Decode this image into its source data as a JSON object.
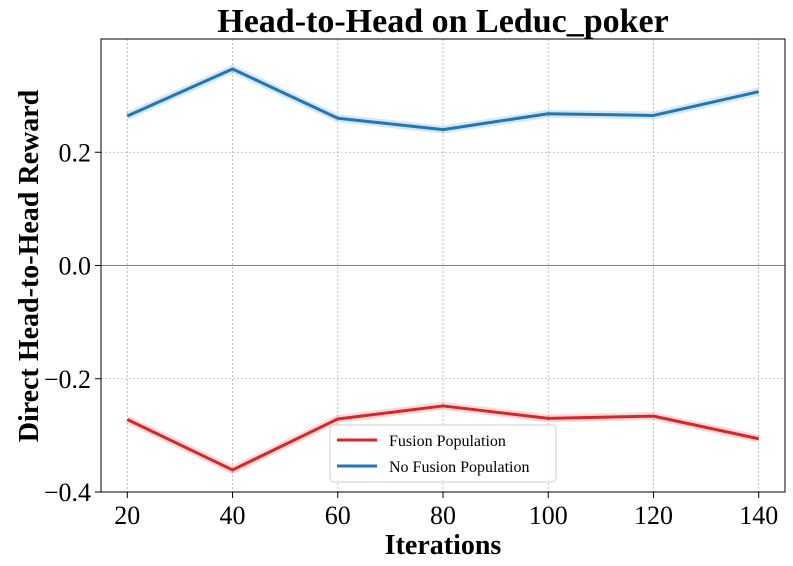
{
  "chart_data": {
    "type": "line",
    "title": "Head-to-Head on Leduc_poker",
    "xlabel": "Iterations",
    "ylabel": "Direct Head-to-Head Reward",
    "x": [
      20,
      40,
      60,
      80,
      100,
      120,
      140
    ],
    "xlim": [
      15,
      145
    ],
    "ylim": [
      -0.4,
      0.4
    ],
    "xticks": [
      20,
      40,
      60,
      80,
      100,
      120,
      140
    ],
    "xtick_labels": [
      "20",
      "40",
      "60",
      "80",
      "100",
      "120",
      "140"
    ],
    "yticks": [
      -0.4,
      -0.2,
      0.0,
      0.2
    ],
    "ytick_labels": [
      "−0.4",
      "−0.2",
      "0.0",
      "0.2"
    ],
    "grid": true,
    "zero_line": true,
    "legend_position": "lower-center",
    "series": [
      {
        "name": "Fusion Population",
        "color": "#d62728",
        "values": [
          -0.272,
          -0.361,
          -0.271,
          -0.248,
          -0.27,
          -0.266,
          -0.306
        ]
      },
      {
        "name": "No Fusion Population",
        "color": "#1f77b4",
        "values": [
          0.264,
          0.347,
          0.26,
          0.24,
          0.268,
          0.265,
          0.307
        ]
      }
    ]
  }
}
